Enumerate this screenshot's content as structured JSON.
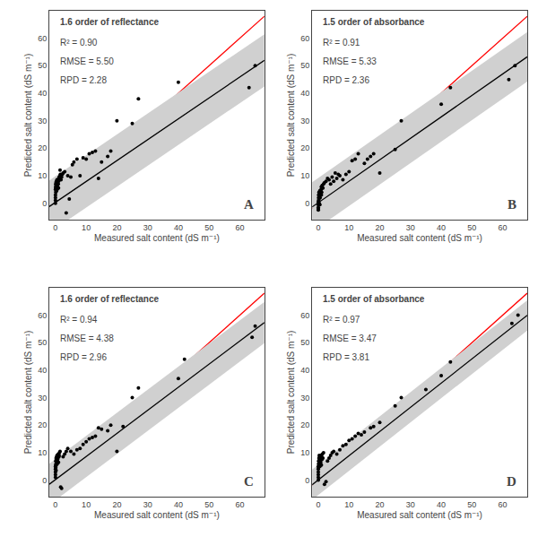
{
  "chart_data": [
    {
      "type": "scatter",
      "title": "1.6 order of reflectance",
      "label": "A",
      "annotations": [
        "R² = 0.90",
        "RMSE = 5.50",
        "RPD = 2.28"
      ],
      "xlabel": "Measured salt content (dS m⁻¹)",
      "ylabel": "Predicted salt content (dS m⁻¹)",
      "xlim": [
        -2,
        68
      ],
      "ylim": [
        -6,
        70
      ],
      "xticks": [
        0,
        10,
        20,
        30,
        40,
        50,
        60
      ],
      "yticks": [
        0,
        10,
        20,
        30,
        40,
        50,
        60
      ],
      "grid": false,
      "series": [
        {
          "type": "line",
          "color": "#ff0000",
          "x": [
            -2,
            68
          ],
          "y": [
            -2,
            68
          ]
        },
        {
          "type": "band",
          "color": "#d0d0d0",
          "x": [
            -2,
            68
          ],
          "lower": [
            -10.72,
            42.48
          ],
          "upper": [
            8.28,
            61.48
          ]
        },
        {
          "type": "line",
          "color": "#000000",
          "x": [
            -2,
            68
          ],
          "y": [
            -1.22,
            51.98
          ]
        },
        {
          "type": "scatter",
          "marker": "circle",
          "color": "#000000",
          "x": [
            0.0,
            0.0,
            0.0,
            0.0,
            0.0,
            0.1,
            0.1,
            0.1,
            0.1,
            0.2,
            0.2,
            0.2,
            0.3,
            0.3,
            0.3,
            0.4,
            0.4,
            0.5,
            0.5,
            0.5,
            0.6,
            0.6,
            0.7,
            0.8,
            0.8,
            0.9,
            1.0,
            1.0,
            1.1,
            1.2,
            1.5,
            1.5,
            1.6,
            1.8,
            2.0,
            2.2,
            2.5,
            3.0,
            3.5,
            4.0,
            4.5,
            5.0,
            5.5,
            6.0,
            7.0,
            8.0,
            9.0,
            10.0,
            11.0,
            12.0,
            13.0,
            14.0,
            15.0,
            17.0,
            18.0,
            20.0,
            25.0,
            27.0,
            40.0,
            63.0,
            65.0
          ],
          "y": [
            0.0,
            1.0,
            2.0,
            3.0,
            5.0,
            4.0,
            5.5,
            6.0,
            7.0,
            4.5,
            6.5,
            7.5,
            5.0,
            6.0,
            8.0,
            4.5,
            6.5,
            5.0,
            7.0,
            8.5,
            5.5,
            7.5,
            6.0,
            7.0,
            8.5,
            7.0,
            5.5,
            8.0,
            9.0,
            9.5,
            10.0,
            12.0,
            10.5,
            8.5,
            9.5,
            10.5,
            11.0,
            11.5,
            -3.5,
            10.0,
            1.5,
            9.5,
            14.0,
            15.0,
            16.0,
            10.0,
            16.5,
            16.0,
            18.0,
            18.5,
            19.0,
            9.0,
            15.0,
            17.0,
            19.0,
            30.0,
            29.0,
            38.0,
            44.0,
            42.0,
            50.0
          ]
        }
      ]
    },
    {
      "type": "scatter",
      "title": "1.5 order of absorbance",
      "label": "B",
      "annotations": [
        "R² = 0.91",
        "RMSE = 5.33",
        "RPD = 2.36"
      ],
      "xlabel": "Measured salt content (dS m⁻¹)",
      "ylabel": "Predicted salt content (dS m⁻¹)",
      "xlim": [
        -2,
        68
      ],
      "ylim": [
        -6,
        70
      ],
      "xticks": [
        0,
        10,
        20,
        30,
        40,
        50,
        60
      ],
      "yticks": [
        0,
        10,
        20,
        30,
        40,
        50,
        60
      ],
      "grid": false,
      "series": [
        {
          "type": "line",
          "color": "#ff0000",
          "x": [
            -2,
            68
          ],
          "y": [
            -2,
            68
          ]
        },
        {
          "type": "band",
          "color": "#d0d0d0",
          "x": [
            -2,
            68
          ],
          "lower": [
            -10.36,
            44.24
          ],
          "upper": [
            7.64,
            62.24
          ]
        },
        {
          "type": "line",
          "color": "#000000",
          "x": [
            -2,
            68
          ],
          "y": [
            -1.36,
            53.24
          ]
        },
        {
          "type": "scatter",
          "marker": "circle",
          "color": "#000000",
          "x": [
            0.0,
            0.0,
            0.0,
            0.0,
            0.0,
            0.1,
            0.1,
            0.1,
            0.2,
            0.2,
            0.3,
            0.3,
            0.4,
            0.5,
            0.5,
            0.6,
            0.7,
            0.8,
            0.9,
            1.0,
            1.0,
            1.1,
            1.2,
            1.3,
            1.5,
            1.7,
            2.0,
            2.5,
            3.0,
            3.5,
            4.0,
            4.5,
            5.0,
            5.5,
            6.0,
            6.5,
            7.0,
            8.0,
            9.0,
            10.0,
            11.0,
            12.0,
            13.0,
            15.0,
            16.0,
            17.0,
            18.0,
            20.0,
            25.0,
            27.0,
            40.0,
            43.0,
            62.0,
            64.0
          ],
          "y": [
            -2.5,
            -2.0,
            -1.5,
            -0.5,
            0.5,
            1.0,
            2.0,
            3.0,
            1.5,
            4.0,
            0.0,
            2.5,
            3.5,
            -0.5,
            4.5,
            2.0,
            3.5,
            4.5,
            5.0,
            3.0,
            6.0,
            4.0,
            5.5,
            6.5,
            5.5,
            7.0,
            7.5,
            8.0,
            9.0,
            8.5,
            7.0,
            9.5,
            8.0,
            11.0,
            9.0,
            10.5,
            10.0,
            8.5,
            10.5,
            11.5,
            15.5,
            16.0,
            18.0,
            14.5,
            16.0,
            17.0,
            18.0,
            11.0,
            19.5,
            30.0,
            36.0,
            42.0,
            45.0,
            50.0
          ]
        }
      ]
    },
    {
      "type": "scatter",
      "title": "1.6 order of reflectance",
      "label": "C",
      "annotations": [
        "R² = 0.94",
        "RMSE = 4.38",
        "RPD = 2.96"
      ],
      "xlabel": "Measured salt content (dS m⁻¹)",
      "ylabel": "Predicted salt content (dS m⁻¹)",
      "xlim": [
        -2,
        68
      ],
      "ylim": [
        -6,
        70
      ],
      "xticks": [
        0,
        10,
        20,
        30,
        40,
        50,
        60
      ],
      "yticks": [
        0,
        10,
        20,
        30,
        40,
        50,
        60
      ],
      "grid": false,
      "series": [
        {
          "type": "line",
          "color": "#ff0000",
          "x": [
            -2,
            68
          ],
          "y": [
            -2,
            68
          ]
        },
        {
          "type": "band",
          "color": "#d0d0d0",
          "x": [
            -2,
            68
          ],
          "lower": [
            -8.98,
            49.82
          ],
          "upper": [
            6.02,
            64.82
          ]
        },
        {
          "type": "line",
          "color": "#000000",
          "x": [
            -2,
            68
          ],
          "y": [
            -1.48,
            57.32
          ]
        },
        {
          "type": "scatter",
          "marker": "circle",
          "color": "#000000",
          "x": [
            0.0,
            0.0,
            0.0,
            0.0,
            0.0,
            0.1,
            0.1,
            0.1,
            0.2,
            0.2,
            0.2,
            0.3,
            0.3,
            0.4,
            0.4,
            0.5,
            0.5,
            0.6,
            0.7,
            0.8,
            0.9,
            1.0,
            1.1,
            1.2,
            1.3,
            1.5,
            1.7,
            2.0,
            2.5,
            3.0,
            3.5,
            4.0,
            5.0,
            6.0,
            7.0,
            8.0,
            9.0,
            10.0,
            11.0,
            12.0,
            13.0,
            14.0,
            15.0,
            17.0,
            18.0,
            20.0,
            22.0,
            25.0,
            27.0,
            40.0,
            42.0,
            64.0,
            65.0
          ],
          "y": [
            1.0,
            2.0,
            3.0,
            4.0,
            5.0,
            4.5,
            5.5,
            7.0,
            3.5,
            6.0,
            8.0,
            5.5,
            7.5,
            6.5,
            8.5,
            7.0,
            9.0,
            6.0,
            7.5,
            8.0,
            9.5,
            6.5,
            8.5,
            9.0,
            10.0,
            10.5,
            -2.5,
            -3.0,
            8.5,
            9.5,
            10.5,
            11.5,
            10.5,
            9.5,
            11.0,
            11.5,
            13.0,
            14.0,
            15.0,
            15.5,
            16.0,
            19.0,
            18.5,
            18.0,
            20.0,
            10.5,
            19.5,
            30.0,
            33.5,
            37.0,
            44.0,
            52.0,
            56.0
          ]
        }
      ]
    },
    {
      "type": "scatter",
      "title": "1.5 order of absorbance",
      "label": "D",
      "annotations": [
        "R² = 0.97",
        "RMSE = 3.47",
        "RPD = 3.81"
      ],
      "xlabel": "Measured salt content (dS m⁻¹)",
      "ylabel": "Predicted salt content (dS m⁻¹)",
      "xlim": [
        -2,
        68
      ],
      "ylim": [
        -6,
        70
      ],
      "xticks": [
        0,
        10,
        20,
        30,
        40,
        50,
        60
      ],
      "yticks": [
        0,
        10,
        20,
        30,
        40,
        50,
        60
      ],
      "grid": false,
      "series": [
        {
          "type": "line",
          "color": "#ff0000",
          "x": [
            -2,
            68
          ],
          "y": [
            -2,
            68
          ]
        },
        {
          "type": "band",
          "color": "#d0d0d0",
          "x": [
            -2,
            68
          ],
          "lower": [
            -7.16,
            54.44
          ],
          "upper": [
            3.84,
            65.44
          ]
        },
        {
          "type": "line",
          "color": "#000000",
          "x": [
            -2,
            68
          ],
          "y": [
            -1.66,
            59.94
          ]
        },
        {
          "type": "scatter",
          "marker": "circle",
          "color": "#000000",
          "x": [
            0.0,
            0.0,
            0.0,
            0.0,
            0.0,
            0.0,
            0.1,
            0.1,
            0.1,
            0.2,
            0.2,
            0.3,
            0.3,
            0.4,
            0.5,
            0.5,
            0.6,
            0.7,
            0.8,
            0.9,
            1.0,
            1.1,
            1.2,
            1.3,
            1.5,
            1.7,
            2.0,
            2.5,
            3.0,
            3.5,
            4.0,
            4.5,
            5.0,
            6.0,
            7.0,
            8.0,
            9.0,
            10.0,
            11.0,
            12.0,
            13.0,
            14.0,
            15.0,
            17.0,
            18.0,
            20.0,
            25.0,
            27.0,
            35.0,
            40.0,
            43.0,
            63.0,
            65.0
          ],
          "y": [
            0.0,
            1.0,
            2.0,
            3.0,
            4.0,
            5.0,
            4.5,
            6.0,
            7.0,
            5.5,
            8.0,
            6.5,
            9.0,
            7.5,
            5.0,
            8.5,
            7.0,
            8.0,
            6.5,
            9.0,
            5.5,
            8.5,
            7.5,
            9.5,
            8.0,
            10.0,
            -1.5,
            -0.5,
            7.0,
            8.0,
            9.0,
            10.0,
            10.5,
            9.5,
            11.0,
            12.5,
            13.0,
            14.5,
            15.0,
            16.0,
            17.0,
            16.5,
            17.5,
            19.0,
            19.5,
            21.0,
            27.0,
            30.0,
            33.0,
            38.0,
            43.0,
            57.0,
            60.0
          ]
        }
      ]
    }
  ]
}
